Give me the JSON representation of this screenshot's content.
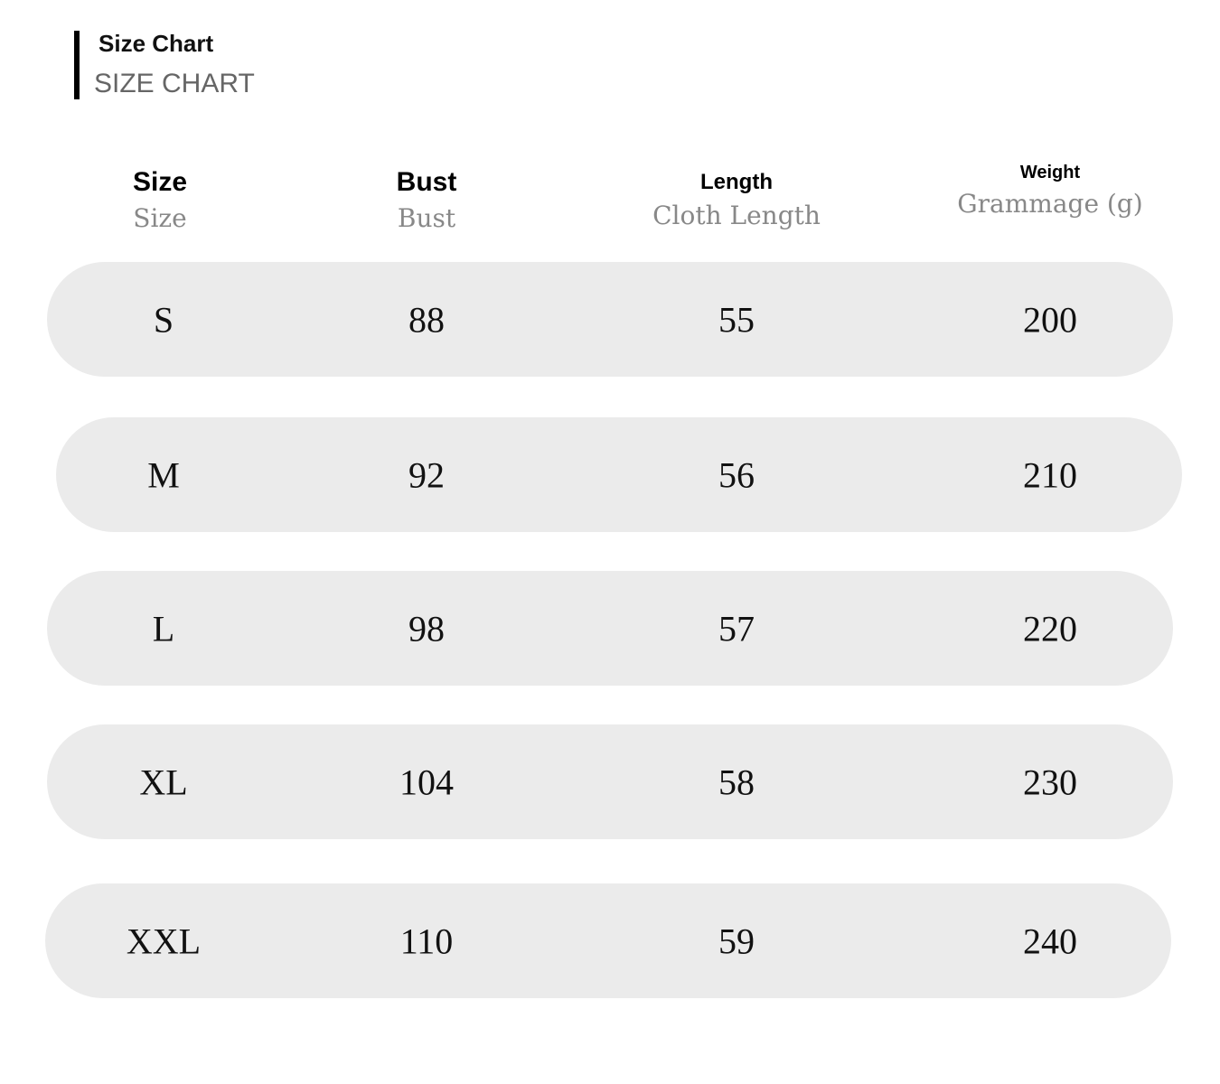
{
  "header": {
    "title": "Size Chart",
    "subtitle": "SIZE CHART"
  },
  "columns": [
    {
      "main": "Size",
      "sub": "Size"
    },
    {
      "main": "Bust",
      "sub": "Bust"
    },
    {
      "main": "Length",
      "sub": "Cloth Length"
    },
    {
      "main": "Weight",
      "sub": "Grammage (g)"
    }
  ],
  "rows": [
    [
      "S",
      "88",
      "55",
      "200"
    ],
    [
      "M",
      "92",
      "56",
      "210"
    ],
    [
      "L",
      "98",
      "57",
      "220"
    ],
    [
      "XL",
      "104",
      "58",
      "230"
    ],
    [
      "XXL",
      "110",
      "59",
      "240"
    ]
  ]
}
